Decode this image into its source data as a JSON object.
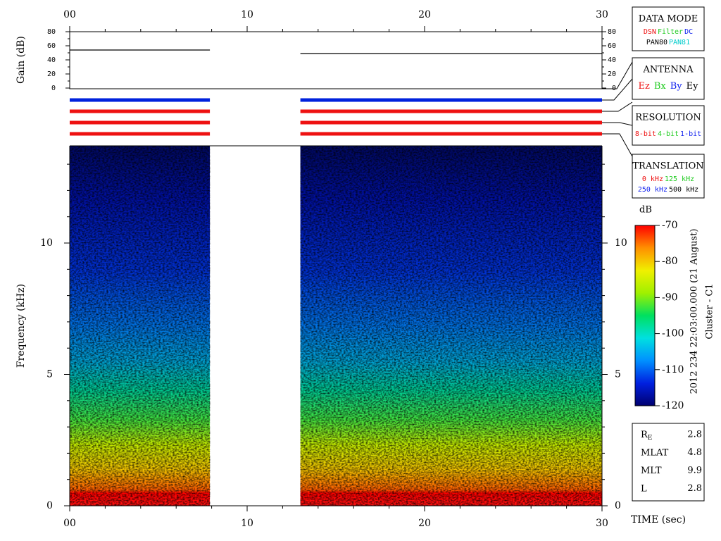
{
  "chart_data": [
    {
      "type": "line",
      "ylabel": "Gain (dB)",
      "xlim": [
        0,
        30
      ],
      "xticks": [
        {
          "value": 0,
          "label": "00"
        },
        10,
        20,
        30
      ],
      "xminorticks": [
        2,
        4,
        6,
        8,
        12,
        14,
        16,
        18,
        22,
        24,
        26,
        28
      ],
      "ylim": [
        0,
        80
      ],
      "yticks": [
        0,
        20,
        40,
        60,
        80
      ],
      "yminorticks": [
        10,
        30,
        50,
        70
      ],
      "series": [
        {
          "color": "#000000",
          "x": [
            0,
            7.9
          ],
          "values": [
            54,
            54
          ]
        },
        {
          "color": "#000000",
          "x": [
            13,
            30
          ],
          "values": [
            49,
            49
          ]
        }
      ]
    },
    {
      "type": "status",
      "xlim": [
        0,
        30
      ],
      "rows": [
        {
          "color": "#0022dd",
          "segments": [
            [
              0,
              7.9
            ],
            [
              13,
              30
            ]
          ]
        },
        {
          "color": "#ee1111",
          "segments": [
            [
              0,
              7.9
            ],
            [
              13,
              30
            ]
          ]
        },
        {
          "color": "#ee1111",
          "segments": [
            [
              0,
              7.9
            ],
            [
              13,
              30
            ]
          ]
        },
        {
          "color": "#ee1111",
          "segments": [
            [
              0,
              7.9
            ],
            [
              13,
              30
            ]
          ]
        }
      ]
    },
    {
      "type": "heatmap",
      "ylabel": "Frequency (kHz)",
      "xlabel": "TIME (sec)",
      "xlim": [
        0,
        30
      ],
      "xticks": [
        {
          "value": 0,
          "label": "00"
        },
        10,
        20,
        30
      ],
      "xminorticks": [
        2,
        4,
        6,
        8,
        12,
        14,
        16,
        18,
        22,
        24,
        26,
        28
      ],
      "ylim": [
        0,
        13.7
      ],
      "yticks": [
        0,
        5,
        10
      ],
      "yminorticks": [
        1,
        2,
        3,
        4,
        6,
        7,
        8,
        9,
        11,
        12,
        13
      ],
      "segments": [
        [
          0,
          7.9
        ],
        [
          13,
          30
        ]
      ],
      "colorbar": {
        "title": "dB",
        "lim": [
          -120,
          -70
        ],
        "ticks": [
          -70,
          -80,
          -90,
          -100,
          -110,
          -120
        ],
        "colors": [
          "#000070",
          "#0020e0",
          "#0090ff",
          "#00e0e0",
          "#00e060",
          "#a0f000",
          "#f0f000",
          "#ff9000",
          "#ff0000"
        ]
      }
    }
  ],
  "legend_panels": [
    {
      "title": "DATA MODE",
      "rows": [
        [
          {
            "text": "DSN",
            "color": "#ee1111"
          },
          {
            "text": "Filter",
            "color": "#22cc22"
          },
          {
            "text": "DC",
            "color": "#1122ee"
          }
        ],
        [
          {
            "text": "PAN80",
            "color": "#000000"
          },
          {
            "text": "PAN81",
            "color": "#00cccc"
          }
        ]
      ]
    },
    {
      "title": "ANTENNA",
      "rows": [
        [
          {
            "text": "Ez",
            "color": "#ee1111"
          },
          {
            "text": "Bx",
            "color": "#22cc22"
          },
          {
            "text": "By",
            "color": "#1122ee"
          },
          {
            "text": "Ey",
            "color": "#000000"
          }
        ]
      ]
    },
    {
      "title": "RESOLUTION",
      "rows": [
        [
          {
            "text": "8-bit",
            "color": "#ee1111"
          },
          {
            "text": "4-bit",
            "color": "#22cc22"
          },
          {
            "text": "1-bit",
            "color": "#1122ee"
          }
        ]
      ]
    },
    {
      "title": "TRANSLATION",
      "rows": [
        [
          {
            "text": "0 kHz",
            "color": "#ee1111"
          },
          {
            "text": "125 kHz",
            "color": "#22cc22"
          }
        ],
        [
          {
            "text": "250 kHz",
            "color": "#1122ee"
          },
          {
            "text": "500 kHz",
            "color": "#000000"
          }
        ]
      ]
    }
  ],
  "timestamp": "2012 234 22:03:00.000 (21 August)",
  "spacecraft": "Cluster - C1",
  "orbit_info": [
    {
      "label": "R",
      "sub": "E",
      "value": 2.8
    },
    {
      "label": "MLAT",
      "value": 4.8
    },
    {
      "label": "MLT",
      "value": 9.9
    },
    {
      "label": "L",
      "value": 2.8
    }
  ]
}
